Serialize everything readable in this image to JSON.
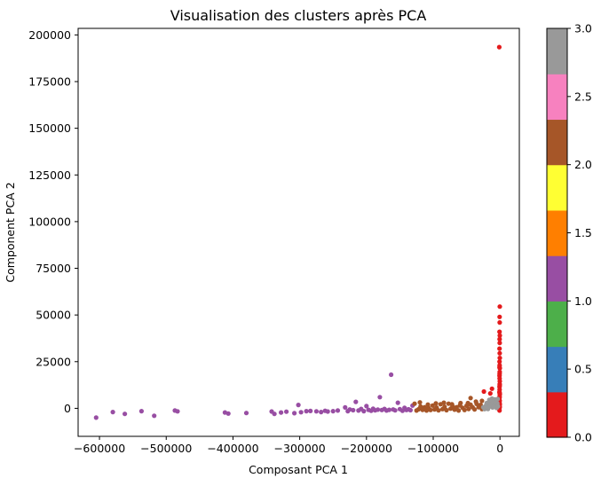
{
  "chart_data": {
    "type": "scatter",
    "title": "Visualisation des clusters après PCA",
    "xlabel": "Composant PCA  1",
    "ylabel": "Component PCA  2",
    "xlim": [
      -632000,
      29000
    ],
    "ylim": [
      -15000,
      203500
    ],
    "xticks": [
      -600000,
      -500000,
      -400000,
      -300000,
      -200000,
      -100000,
      0
    ],
    "xtick_labels": [
      "−600000",
      "−500000",
      "−400000",
      "−300000",
      "−200000",
      "−100000",
      "0"
    ],
    "yticks": [
      0,
      25000,
      50000,
      75000,
      100000,
      125000,
      150000,
      175000,
      200000
    ],
    "ytick_labels": [
      "0",
      "25000",
      "50000",
      "75000",
      "100000",
      "125000",
      "150000",
      "175000",
      "200000"
    ],
    "colorbar": {
      "colormap": "Set1",
      "range": [
        0,
        3
      ],
      "ticks": [
        0,
        0.5,
        1,
        1.5,
        2,
        2.5,
        3
      ],
      "tick_labels": [
        "0.0",
        "0.5",
        "1.0",
        "1.5",
        "2.0",
        "2.5",
        "3.0"
      ],
      "colors": [
        "#e41a1c",
        "#377eb8",
        "#4daf4a",
        "#984ea3",
        "#ff7f00",
        "#ffff33",
        "#a65628",
        "#f781bf",
        "#999999"
      ]
    },
    "clusters": [
      {
        "cluster": 0,
        "color": "#e41a1c",
        "points": [
          [
            -1000,
            193500
          ],
          [
            -300,
            54500
          ],
          [
            -500,
            49000
          ],
          [
            -400,
            46000
          ],
          [
            -600,
            41000
          ],
          [
            -300,
            39000
          ],
          [
            -500,
            37000
          ],
          [
            -400,
            35000
          ],
          [
            -700,
            32000
          ],
          [
            -400,
            29500
          ],
          [
            -300,
            27000
          ],
          [
            -600,
            25000
          ],
          [
            -500,
            23000
          ],
          [
            -300,
            21500
          ],
          [
            -400,
            19500
          ],
          [
            -600,
            17500
          ],
          [
            -500,
            16000
          ],
          [
            -300,
            14500
          ],
          [
            -400,
            13000
          ],
          [
            -700,
            11500
          ],
          [
            -500,
            10000
          ],
          [
            -800,
            8700
          ],
          [
            -300,
            7500
          ],
          [
            -500,
            6300
          ],
          [
            -900,
            5200
          ],
          [
            -400,
            4100
          ],
          [
            -600,
            3100
          ],
          [
            -300,
            2200
          ],
          [
            -800,
            1300
          ],
          [
            -500,
            400
          ],
          [
            -1200,
            -500
          ],
          [
            -700,
            -1200
          ],
          [
            -400,
            900
          ],
          [
            -1000,
            2600
          ],
          [
            -600,
            5800
          ],
          [
            -350,
            8100
          ],
          [
            -450,
            12200
          ],
          [
            -550,
            18500
          ],
          [
            -650,
            22000
          ],
          [
            -12000,
            10500
          ],
          [
            -14500,
            8000
          ],
          [
            -24000,
            9000
          ]
        ]
      },
      {
        "cluster": 1,
        "color": "#984ea3",
        "points": [
          [
            -605000,
            -5000
          ],
          [
            -580000,
            -2000
          ],
          [
            -562000,
            -3000
          ],
          [
            -537000,
            -1500
          ],
          [
            -518000,
            -4000
          ],
          [
            -487000,
            -1200
          ],
          [
            -483000,
            -1600
          ],
          [
            -412000,
            -2200
          ],
          [
            -407000,
            -2800
          ],
          [
            -380000,
            -2500
          ],
          [
            -342000,
            -1700
          ],
          [
            -338000,
            -3000
          ],
          [
            -328000,
            -2200
          ],
          [
            -320000,
            -1800
          ],
          [
            -308000,
            -2600
          ],
          [
            -302000,
            1800
          ],
          [
            -298000,
            -2100
          ],
          [
            -290000,
            -1500
          ],
          [
            -284000,
            -1400
          ],
          [
            -275000,
            -1600
          ],
          [
            -268000,
            -2000
          ],
          [
            -262000,
            -1300
          ],
          [
            -258000,
            -1700
          ],
          [
            -250000,
            -1500
          ],
          [
            -243000,
            -1200
          ],
          [
            -232000,
            500
          ],
          [
            -228000,
            -1500
          ],
          [
            -225000,
            -600
          ],
          [
            -220000,
            -1000
          ],
          [
            -216000,
            3500
          ],
          [
            -212000,
            -1200
          ],
          [
            -208000,
            -300
          ],
          [
            -204000,
            -1500
          ],
          [
            -200000,
            1200
          ],
          [
            -197000,
            -800
          ],
          [
            -193000,
            -1300
          ],
          [
            -190000,
            -200
          ],
          [
            -187000,
            -1100
          ],
          [
            -183000,
            -700
          ],
          [
            -180000,
            6000
          ],
          [
            -177000,
            -900
          ],
          [
            -173000,
            -300
          ],
          [
            -170000,
            -1200
          ],
          [
            -166000,
            -800
          ],
          [
            -163000,
            18000
          ],
          [
            -160000,
            -600
          ],
          [
            -157000,
            -1100
          ],
          [
            -153000,
            3000
          ],
          [
            -150000,
            -400
          ],
          [
            -146000,
            -1300
          ],
          [
            -143000,
            300
          ],
          [
            -140000,
            -900
          ],
          [
            -137000,
            -500
          ],
          [
            -134000,
            -1000
          ],
          [
            -131000,
            1500
          ]
        ]
      },
      {
        "cluster": 2,
        "color": "#a65628",
        "points": [
          [
            -128000,
            2500
          ],
          [
            -125000,
            -1200
          ],
          [
            -122000,
            -500
          ],
          [
            -119000,
            1000
          ],
          [
            -116000,
            -800
          ],
          [
            -113000,
            600
          ],
          [
            -110000,
            -1200
          ],
          [
            -107000,
            200
          ],
          [
            -104000,
            -900
          ],
          [
            -101000,
            1500
          ],
          [
            -98000,
            -600
          ],
          [
            -95000,
            400
          ],
          [
            -92000,
            -1100
          ],
          [
            -89000,
            2200
          ],
          [
            -86000,
            -400
          ],
          [
            -83000,
            800
          ],
          [
            -80000,
            -1000
          ],
          [
            -77000,
            2500
          ],
          [
            -74000,
            -200
          ],
          [
            -71000,
            1100
          ],
          [
            -68000,
            -700
          ],
          [
            -65000,
            600
          ],
          [
            -62000,
            -1200
          ],
          [
            -59000,
            2800
          ],
          [
            -56000,
            300
          ],
          [
            -53000,
            -900
          ],
          [
            -50000,
            1400
          ],
          [
            -47000,
            -300
          ],
          [
            -44000,
            1900
          ],
          [
            -41000,
            600
          ],
          [
            -38000,
            -600
          ],
          [
            -35000,
            2400
          ],
          [
            -32000,
            600
          ],
          [
            -29000,
            1800
          ],
          [
            -27000,
            -400
          ],
          [
            -44000,
            5500
          ],
          [
            -27000,
            4000
          ],
          [
            -36000,
            3600
          ],
          [
            -120000,
            3200
          ],
          [
            -108000,
            2000
          ],
          [
            -96000,
            2600
          ],
          [
            -84000,
            3000
          ],
          [
            -72000,
            2200
          ],
          [
            -60000,
            1600
          ],
          [
            -48000,
            2800
          ]
        ]
      },
      {
        "cluster": 3,
        "color": "#999999",
        "points": [
          [
            -25000,
            600
          ],
          [
            -23000,
            -400
          ],
          [
            -21000,
            1500
          ],
          [
            -19000,
            300
          ],
          [
            -17000,
            2800
          ],
          [
            -15000,
            1000
          ],
          [
            -13000,
            3800
          ],
          [
            -11000,
            500
          ],
          [
            -9000,
            2200
          ],
          [
            -8000,
            4800
          ],
          [
            -7000,
            1200
          ],
          [
            -6000,
            3600
          ],
          [
            -5000,
            200
          ],
          [
            -4000,
            2600
          ],
          [
            -3000,
            1100
          ],
          [
            -20000,
            2800
          ],
          [
            -16000,
            4500
          ],
          [
            -12000,
            5200
          ],
          [
            -10000,
            3000
          ],
          [
            -22000,
            1000
          ],
          [
            -18000,
            -300
          ],
          [
            -14000,
            2000
          ],
          [
            -9500,
            800
          ],
          [
            -7500,
            3000
          ],
          [
            -5500,
            4400
          ],
          [
            -3500,
            5000
          ]
        ]
      }
    ]
  }
}
